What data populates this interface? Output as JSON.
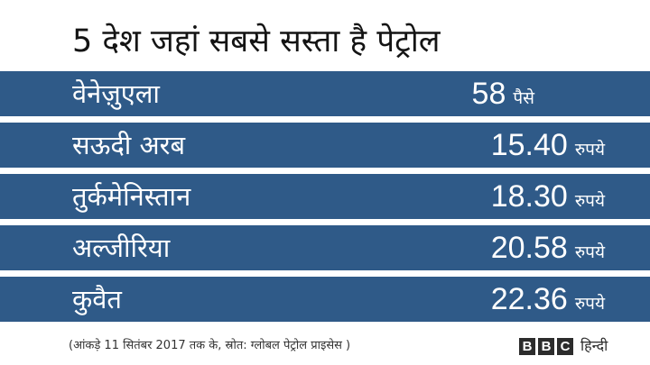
{
  "title": "5 देश जहां सबसे सस्ता है पेट्रोल",
  "rows": [
    {
      "country": "वेनेज़ुएला",
      "amount": "58",
      "unit": "पैसे"
    },
    {
      "country": "सऊदी अरब",
      "amount": "15.40",
      "unit": "रुपये"
    },
    {
      "country": "तुर्कमेनिस्तान",
      "amount": "18.30",
      "unit": "रुपये"
    },
    {
      "country": "अल्जीरिया",
      "amount": "20.58",
      "unit": "रुपये"
    },
    {
      "country": "कुवैत",
      "amount": "22.36",
      "unit": "रुपये"
    }
  ],
  "footer": {
    "source": "(आंकड़े 11 सितंबर 2017 तक के, स्रोत: ग्लोबल पेट्रोल प्राइसेस )",
    "logo_letters": [
      "B",
      "B",
      "C"
    ],
    "logo_word": "हिन्दी"
  },
  "colors": {
    "row_background": "#2f5a88",
    "row_text": "#ffffff",
    "page_background": "#ffffff",
    "title_text": "#141414",
    "logo_box": "#2c2c2c"
  }
}
